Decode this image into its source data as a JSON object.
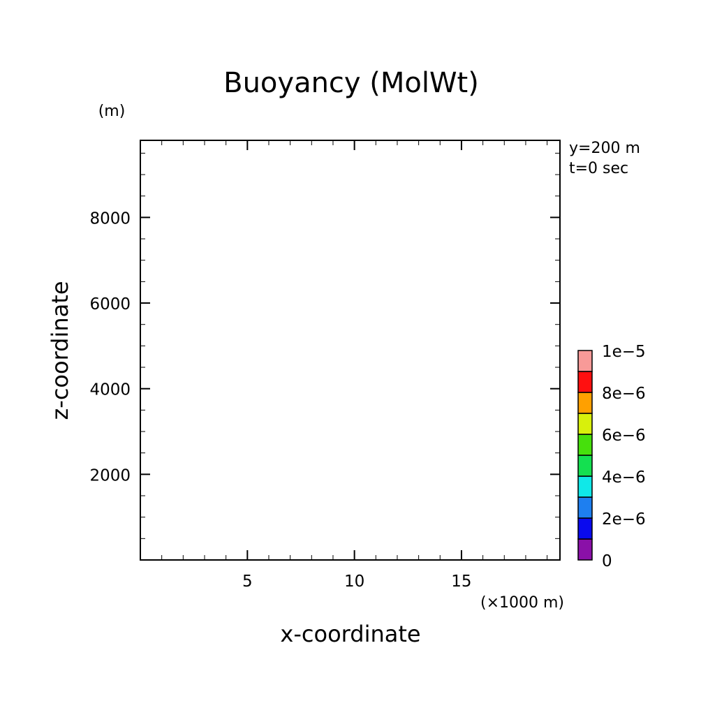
{
  "chart_data": {
    "type": "heatmap",
    "title": "Buoyancy (MolWt)",
    "xlabel": "x-coordinate",
    "ylabel": "z-coordinate",
    "x_unit": "(×1000 m)",
    "y_unit": "(m)",
    "xlim": [
      0,
      19.6
    ],
    "ylim": [
      0,
      9800
    ],
    "x_ticks": [
      5,
      10,
      15
    ],
    "x_tick_labels": [
      "5",
      "10",
      "15"
    ],
    "y_ticks": [
      2000,
      4000,
      6000,
      8000
    ],
    "y_tick_labels": [
      "2000",
      "4000",
      "6000",
      "8000"
    ],
    "info": [
      "y=200 m",
      "t=0 sec"
    ],
    "values": [],
    "colorbar": {
      "levels": [
        0,
        1e-06,
        2e-06,
        3e-06,
        4e-06,
        5e-06,
        6e-06,
        7e-06,
        8e-06,
        9e-06,
        1e-05
      ],
      "colors": [
        "#8a10a8",
        "#0a0aee",
        "#1e7ff0",
        "#10e8e8",
        "#14e050",
        "#46e00c",
        "#d8f00c",
        "#ffa000",
        "#ff1010",
        "#f89a98"
      ],
      "labels": [
        {
          "value": 0,
          "text": "0"
        },
        {
          "value": 2e-06,
          "text": "2e−6"
        },
        {
          "value": 4e-06,
          "text": "4e−6"
        },
        {
          "value": 6e-06,
          "text": "6e−6"
        },
        {
          "value": 8e-06,
          "text": "8e−6"
        },
        {
          "value": 1e-05,
          "text": "1e−5"
        }
      ]
    },
    "grid": false
  }
}
